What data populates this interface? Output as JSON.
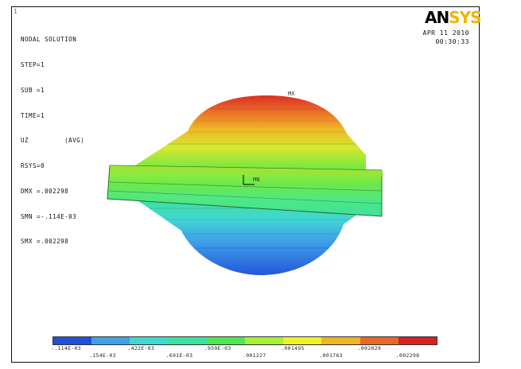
{
  "window": {
    "corner_mark": "1"
  },
  "info_block": {
    "lines": [
      "NODAL SOLUTION",
      "STEP=1",
      "SUB =1",
      "TIME=1",
      "UZ         (AVG)",
      "RSYS=0",
      "DMX =.002298",
      "SMN =-.114E-03",
      "SMX =.002298"
    ]
  },
  "logo": {
    "part1": "AN",
    "part2": "SYS"
  },
  "timestamp": {
    "date": "APR 11 2010",
    "time": "00:30:33"
  },
  "markers": {
    "max": "MX",
    "min": "MN"
  },
  "legend": {
    "colors": [
      "#2050d8",
      "#40a0e8",
      "#40d8d0",
      "#40e0a0",
      "#50e850",
      "#a8f038",
      "#f0f028",
      "#f0b428",
      "#e86828",
      "#d82020"
    ],
    "labels": [
      "-.114E-03",
      ".154E-03",
      ".422E-03",
      ".691E-03",
      ".959E-03",
      ".001227",
      ".001495",
      ".001763",
      ".002029",
      ".002298"
    ]
  },
  "colors": {
    "logo_black": "#000000",
    "logo_yellow": "#f0b400",
    "background": "#ffffff"
  }
}
